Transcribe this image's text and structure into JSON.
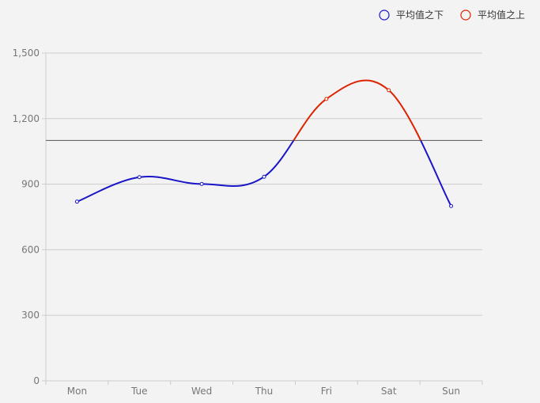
{
  "chart_data": {
    "type": "line",
    "smooth": true,
    "categories": [
      "Mon",
      "Tue",
      "Wed",
      "Thu",
      "Fri",
      "Sat",
      "Sun"
    ],
    "series": [
      {
        "values": [
          820,
          932,
          901,
          934,
          1290,
          1330,
          800
        ]
      }
    ],
    "ylim": [
      0,
      1500
    ],
    "yticks": [
      0,
      300,
      600,
      900,
      1200,
      1500
    ],
    "ytick_labels": [
      "0",
      "300",
      "600",
      "900",
      "1,200",
      "1,500"
    ],
    "threshold": 1100,
    "grid": true,
    "legend_position": "top-right",
    "legend": [
      {
        "label": "平均值之下",
        "color": "#1a16c8"
      },
      {
        "label": "平均值之上",
        "color": "#dd2200"
      }
    ],
    "colors": {
      "below": "#1a16c8",
      "above": "#dd2200",
      "grid": "#cccccc",
      "axis": "#cccccc",
      "threshold_line": "#555555"
    }
  }
}
